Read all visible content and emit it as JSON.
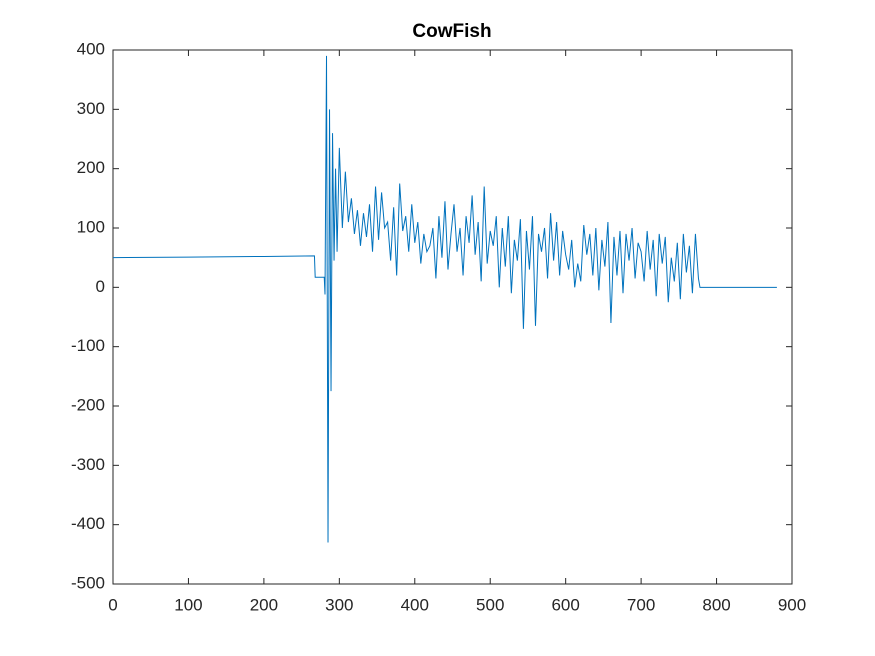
{
  "chart_data": {
    "type": "line",
    "title": "CowFish",
    "x": [
      0,
      100,
      200,
      267,
      268,
      280,
      281,
      283,
      285,
      287,
      289,
      291,
      293,
      295,
      297,
      300,
      304,
      308,
      312,
      316,
      320,
      324,
      328,
      332,
      336,
      340,
      344,
      348,
      352,
      356,
      360,
      364,
      368,
      372,
      376,
      380,
      384,
      388,
      392,
      396,
      400,
      404,
      408,
      412,
      416,
      420,
      424,
      428,
      432,
      436,
      440,
      444,
      448,
      452,
      456,
      460,
      464,
      468,
      472,
      476,
      480,
      484,
      488,
      492,
      496,
      500,
      504,
      508,
      512,
      516,
      520,
      524,
      528,
      532,
      536,
      540,
      544,
      548,
      552,
      556,
      560,
      564,
      568,
      572,
      576,
      580,
      584,
      588,
      592,
      596,
      600,
      604,
      608,
      612,
      616,
      620,
      624,
      628,
      632,
      636,
      640,
      644,
      648,
      652,
      656,
      660,
      664,
      668,
      672,
      676,
      680,
      684,
      688,
      692,
      696,
      700,
      704,
      708,
      712,
      716,
      720,
      724,
      728,
      732,
      736,
      740,
      744,
      748,
      752,
      756,
      760,
      764,
      768,
      772,
      776,
      778,
      880
    ],
    "series": [
      {
        "name": "CowFish",
        "color": "#0072BD",
        "values": [
          50,
          51,
          52,
          53,
          17,
          17,
          -12,
          390,
          -430,
          300,
          -175,
          260,
          45,
          200,
          60,
          235,
          100,
          195,
          110,
          150,
          90,
          130,
          70,
          125,
          85,
          140,
          60,
          170,
          80,
          160,
          100,
          110,
          45,
          135,
          20,
          175,
          95,
          120,
          60,
          140,
          75,
          110,
          40,
          90,
          60,
          70,
          100,
          15,
          120,
          50,
          145,
          30,
          90,
          140,
          60,
          100,
          20,
          120,
          75,
          155,
          55,
          110,
          10,
          170,
          40,
          95,
          70,
          120,
          0,
          100,
          35,
          120,
          -10,
          80,
          45,
          115,
          -70,
          95,
          30,
          120,
          -65,
          90,
          60,
          100,
          15,
          125,
          45,
          110,
          20,
          95,
          55,
          30,
          80,
          0,
          40,
          10,
          105,
          55,
          90,
          20,
          100,
          -5,
          80,
          35,
          110,
          -60,
          85,
          20,
          95,
          -10,
          90,
          45,
          100,
          15,
          75,
          60,
          10,
          95,
          30,
          80,
          -15,
          90,
          40,
          85,
          -25,
          50,
          10,
          75,
          -20,
          90,
          25,
          70,
          -10,
          90,
          15,
          0,
          0
        ]
      }
    ],
    "xlim": [
      0,
      900
    ],
    "xticks": [
      0,
      100,
      200,
      300,
      400,
      500,
      600,
      700,
      800,
      900
    ],
    "ylim": [
      -500,
      400
    ],
    "yticks": [
      -500,
      -400,
      -300,
      -200,
      -100,
      0,
      100,
      200,
      300,
      400
    ]
  }
}
